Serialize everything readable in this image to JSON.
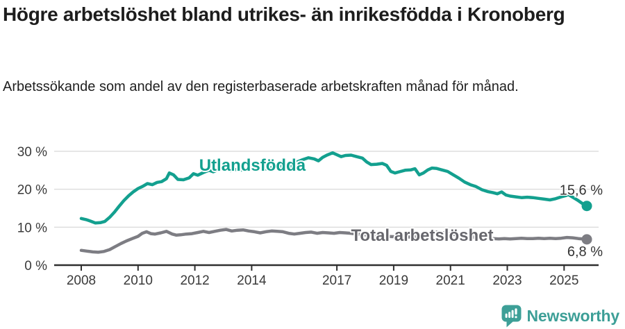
{
  "header": {
    "title": "Högre arbetslöshet bland utrikes- än inrikesfödda i Kronoberg",
    "subtitle": "Arbetssökande som andel av den registerbaserade arbetskraften månad för månad."
  },
  "footer": {
    "brand": "Newsworthy",
    "logo_icon": "newsworthy-speech-bubble-bar-chart-icon",
    "brand_color": "#3d9f97"
  },
  "chart_data": {
    "type": "line",
    "title": "Högre arbetslöshet bland utrikes- än inrikesfödda i Kronoberg",
    "xlabel": "",
    "ylabel": "",
    "unit": "%",
    "grid": true,
    "grid_color": "#dedede",
    "axis_color": "#2f2f2f",
    "tick_label_color": "#3a3a3a",
    "end_label_color": "#333333",
    "xlim": [
      2007.6,
      2026.4
    ],
    "ylim": [
      0,
      32
    ],
    "yticks": [
      {
        "value": 0,
        "label": "0 %"
      },
      {
        "value": 10,
        "label": "10 %"
      },
      {
        "value": 20,
        "label": "20 %"
      },
      {
        "value": 30,
        "label": "30 %"
      }
    ],
    "xticks": [
      {
        "value": 2008,
        "label": "2008"
      },
      {
        "value": 2010,
        "label": "2010"
      },
      {
        "value": 2012,
        "label": "2012"
      },
      {
        "value": 2014,
        "label": "2014"
      },
      {
        "value": 2017,
        "label": "2017"
      },
      {
        "value": 2019,
        "label": "2019"
      },
      {
        "value": 2021,
        "label": "2021"
      },
      {
        "value": 2023,
        "label": "2023"
      },
      {
        "value": 2025,
        "label": "2025"
      }
    ],
    "series": [
      {
        "name": "Utlandsfödda",
        "color": "#13a08f",
        "label_color": "#13a08f",
        "label_at": {
          "year": 2012.15,
          "pct": 24.9
        },
        "end_label": "15,6 %",
        "end_value": 15.6,
        "end_label_offset": {
          "dx": 23,
          "dy": -16
        },
        "points": [
          [
            2008.0,
            12.3
          ],
          [
            2008.17,
            12.0
          ],
          [
            2008.33,
            11.6
          ],
          [
            2008.5,
            11.1
          ],
          [
            2008.67,
            11.2
          ],
          [
            2008.83,
            11.5
          ],
          [
            2009.0,
            12.6
          ],
          [
            2009.17,
            14.0
          ],
          [
            2009.33,
            15.5
          ],
          [
            2009.5,
            17.0
          ],
          [
            2009.67,
            18.3
          ],
          [
            2009.83,
            19.3
          ],
          [
            2010.0,
            20.2
          ],
          [
            2010.17,
            20.8
          ],
          [
            2010.33,
            21.5
          ],
          [
            2010.5,
            21.2
          ],
          [
            2010.67,
            21.8
          ],
          [
            2010.83,
            22.0
          ],
          [
            2011.0,
            22.8
          ],
          [
            2011.1,
            24.3
          ],
          [
            2011.25,
            23.8
          ],
          [
            2011.4,
            22.6
          ],
          [
            2011.6,
            22.5
          ],
          [
            2011.8,
            23.0
          ],
          [
            2011.95,
            24.1
          ],
          [
            2012.1,
            23.7
          ],
          [
            2012.3,
            24.4
          ],
          [
            2012.5,
            25.0
          ],
          [
            2012.65,
            24.6
          ],
          [
            2012.85,
            25.3
          ],
          [
            2013.05,
            25.7
          ],
          [
            2013.25,
            24.9
          ],
          [
            2013.45,
            25.2
          ],
          [
            2013.6,
            25.0
          ],
          [
            2013.8,
            25.3
          ],
          [
            2014.0,
            25.5
          ],
          [
            2014.2,
            25.7
          ],
          [
            2014.4,
            25.2
          ],
          [
            2014.6,
            25.5
          ],
          [
            2014.8,
            25.9
          ],
          [
            2015.0,
            26.2
          ],
          [
            2015.2,
            25.6
          ],
          [
            2015.4,
            26.2
          ],
          [
            2015.6,
            27.2
          ],
          [
            2015.8,
            27.8
          ],
          [
            2016.0,
            28.3
          ],
          [
            2016.2,
            28.0
          ],
          [
            2016.35,
            27.5
          ],
          [
            2016.5,
            28.4
          ],
          [
            2016.65,
            29.0
          ],
          [
            2016.85,
            29.6
          ],
          [
            2017.0,
            29.1
          ],
          [
            2017.15,
            28.6
          ],
          [
            2017.3,
            28.9
          ],
          [
            2017.5,
            29.0
          ],
          [
            2017.7,
            28.6
          ],
          [
            2017.9,
            28.2
          ],
          [
            2018.05,
            27.2
          ],
          [
            2018.2,
            26.5
          ],
          [
            2018.4,
            26.6
          ],
          [
            2018.6,
            26.8
          ],
          [
            2018.75,
            26.3
          ],
          [
            2018.9,
            24.7
          ],
          [
            2019.05,
            24.3
          ],
          [
            2019.2,
            24.6
          ],
          [
            2019.4,
            25.0
          ],
          [
            2019.6,
            25.1
          ],
          [
            2019.75,
            25.4
          ],
          [
            2019.9,
            23.8
          ],
          [
            2020.05,
            24.3
          ],
          [
            2020.2,
            25.1
          ],
          [
            2020.35,
            25.6
          ],
          [
            2020.5,
            25.5
          ],
          [
            2020.7,
            25.1
          ],
          [
            2020.9,
            24.7
          ],
          [
            2021.1,
            23.8
          ],
          [
            2021.3,
            22.9
          ],
          [
            2021.5,
            21.9
          ],
          [
            2021.7,
            21.2
          ],
          [
            2021.9,
            20.7
          ],
          [
            2022.1,
            19.9
          ],
          [
            2022.3,
            19.4
          ],
          [
            2022.5,
            19.1
          ],
          [
            2022.65,
            18.8
          ],
          [
            2022.8,
            19.3
          ],
          [
            2022.95,
            18.5
          ],
          [
            2023.1,
            18.2
          ],
          [
            2023.3,
            18.0
          ],
          [
            2023.5,
            17.8
          ],
          [
            2023.7,
            17.9
          ],
          [
            2023.9,
            17.8
          ],
          [
            2024.1,
            17.6
          ],
          [
            2024.3,
            17.4
          ],
          [
            2024.5,
            17.2
          ],
          [
            2024.7,
            17.5
          ],
          [
            2024.9,
            18.0
          ],
          [
            2025.05,
            18.3
          ],
          [
            2025.15,
            18.6
          ],
          [
            2025.3,
            17.9
          ],
          [
            2025.5,
            17.0
          ],
          [
            2025.65,
            16.2
          ],
          [
            2025.8,
            15.6
          ]
        ]
      },
      {
        "name": "Total arbetslöshet",
        "color": "#7d7d83",
        "label_color": "#67676d",
        "label_at": {
          "year": 2017.5,
          "pct": 6.4
        },
        "end_label": "6,8 %",
        "end_value": 6.8,
        "end_label_offset": {
          "dx": 23,
          "dy": 24
        },
        "points": [
          [
            2008.0,
            3.9
          ],
          [
            2008.2,
            3.7
          ],
          [
            2008.4,
            3.5
          ],
          [
            2008.6,
            3.4
          ],
          [
            2008.8,
            3.6
          ],
          [
            2009.0,
            4.1
          ],
          [
            2009.2,
            4.9
          ],
          [
            2009.4,
            5.7
          ],
          [
            2009.6,
            6.4
          ],
          [
            2009.8,
            7.0
          ],
          [
            2010.0,
            7.6
          ],
          [
            2010.15,
            8.4
          ],
          [
            2010.3,
            8.8
          ],
          [
            2010.45,
            8.3
          ],
          [
            2010.6,
            8.2
          ],
          [
            2010.8,
            8.5
          ],
          [
            2011.0,
            8.9
          ],
          [
            2011.2,
            8.2
          ],
          [
            2011.35,
            7.9
          ],
          [
            2011.5,
            8.0
          ],
          [
            2011.7,
            8.2
          ],
          [
            2011.9,
            8.3
          ],
          [
            2012.1,
            8.6
          ],
          [
            2012.3,
            8.9
          ],
          [
            2012.5,
            8.6
          ],
          [
            2012.7,
            8.9
          ],
          [
            2012.9,
            9.2
          ],
          [
            2013.1,
            9.4
          ],
          [
            2013.3,
            9.0
          ],
          [
            2013.5,
            9.2
          ],
          [
            2013.7,
            9.3
          ],
          [
            2013.9,
            9.0
          ],
          [
            2014.1,
            8.8
          ],
          [
            2014.3,
            8.5
          ],
          [
            2014.5,
            8.8
          ],
          [
            2014.7,
            9.0
          ],
          [
            2014.9,
            8.9
          ],
          [
            2015.1,
            8.8
          ],
          [
            2015.3,
            8.4
          ],
          [
            2015.5,
            8.2
          ],
          [
            2015.7,
            8.4
          ],
          [
            2015.9,
            8.6
          ],
          [
            2016.1,
            8.7
          ],
          [
            2016.3,
            8.4
          ],
          [
            2016.5,
            8.6
          ],
          [
            2016.7,
            8.5
          ],
          [
            2016.9,
            8.4
          ],
          [
            2017.1,
            8.6
          ],
          [
            2017.3,
            8.5
          ],
          [
            2017.5,
            8.4
          ],
          [
            2017.8,
            8.1
          ],
          [
            2018.1,
            7.9
          ],
          [
            2018.4,
            7.8
          ],
          [
            2018.7,
            7.6
          ],
          [
            2019.0,
            7.5
          ],
          [
            2019.3,
            7.4
          ],
          [
            2019.6,
            7.4
          ],
          [
            2019.9,
            7.5
          ],
          [
            2020.2,
            8.2
          ],
          [
            2020.5,
            8.7
          ],
          [
            2020.8,
            8.5
          ],
          [
            2021.1,
            8.1
          ],
          [
            2021.4,
            7.8
          ],
          [
            2021.7,
            7.5
          ],
          [
            2022.0,
            7.2
          ],
          [
            2022.3,
            7.1
          ],
          [
            2022.5,
            7.0
          ],
          [
            2022.7,
            6.9
          ],
          [
            2022.9,
            7.0
          ],
          [
            2023.1,
            6.9
          ],
          [
            2023.3,
            7.0
          ],
          [
            2023.5,
            7.1
          ],
          [
            2023.7,
            7.0
          ],
          [
            2023.9,
            7.0
          ],
          [
            2024.1,
            7.1
          ],
          [
            2024.3,
            7.0
          ],
          [
            2024.5,
            7.1
          ],
          [
            2024.7,
            7.0
          ],
          [
            2024.9,
            7.1
          ],
          [
            2025.1,
            7.3
          ],
          [
            2025.3,
            7.2
          ],
          [
            2025.5,
            7.0
          ],
          [
            2025.65,
            6.9
          ],
          [
            2025.8,
            6.8
          ]
        ]
      }
    ]
  }
}
